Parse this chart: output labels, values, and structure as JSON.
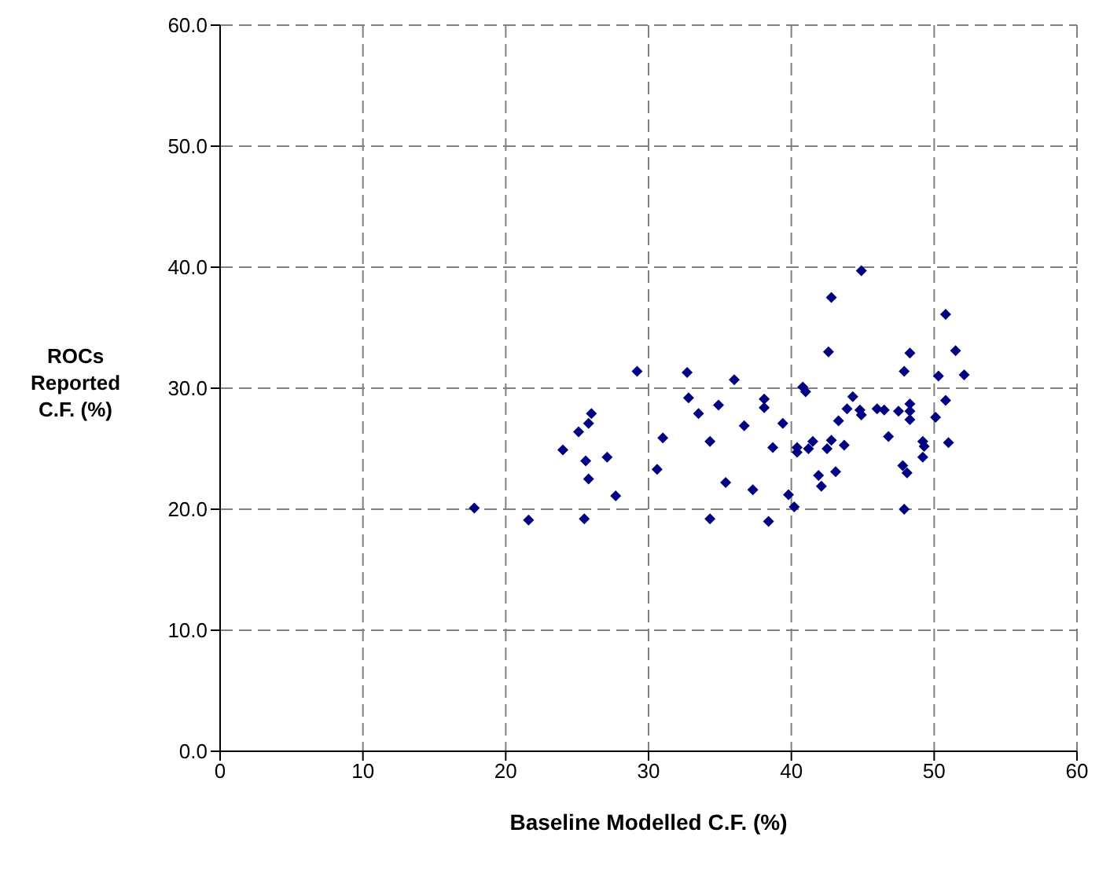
{
  "chart_data": {
    "type": "scatter",
    "xlabel": "Baseline Modelled C.F. (%)",
    "ylabel": "ROCs Reported C.F. (%)",
    "xlim": [
      0,
      60
    ],
    "ylim": [
      0,
      60
    ],
    "xticks": [
      0,
      10,
      20,
      30,
      40,
      50,
      60
    ],
    "yticks": [
      {
        "value": 0,
        "label": "0.0"
      },
      {
        "value": 10,
        "label": "10.0"
      },
      {
        "value": 20,
        "label": "20.0"
      },
      {
        "value": 30,
        "label": "30.0"
      },
      {
        "value": 40,
        "label": "40.0"
      },
      {
        "value": 50,
        "label": "50.0"
      },
      {
        "value": 60,
        "label": "60.0"
      }
    ],
    "grid": true,
    "marker": "diamond",
    "series": [
      {
        "color": "#000080",
        "x": [
          17.8,
          21.6,
          25.5,
          24.0,
          25.6,
          25.8,
          25.1,
          25.8,
          26.0,
          27.1,
          27.7,
          29.2,
          30.6,
          31.0,
          32.7,
          32.8,
          33.5,
          34.3,
          34.3,
          34.9,
          35.4,
          36.0,
          36.7,
          37.3,
          38.4,
          44.9,
          42.8,
          50.8,
          42.6,
          48.3,
          51.5,
          47.9,
          50.3,
          52.1,
          40.8,
          41.0,
          38.1,
          38.1,
          44.3,
          43.9,
          44.8,
          44.9,
          46.0,
          46.5,
          47.5,
          48.3,
          48.3,
          48.3,
          50.8,
          50.1,
          39.4,
          43.3,
          38.7,
          40.4,
          40.4,
          41.2,
          41.5,
          42.5,
          42.8,
          43.7,
          46.8,
          49.2,
          49.3,
          49.2,
          51.0,
          47.8,
          48.1,
          41.9,
          42.1,
          43.1,
          39.8,
          40.2,
          47.9
        ],
        "values": [
          20.1,
          19.1,
          19.2,
          24.9,
          24.0,
          22.5,
          26.4,
          27.1,
          27.9,
          24.3,
          21.1,
          31.4,
          23.3,
          25.9,
          31.3,
          29.2,
          27.9,
          25.6,
          19.2,
          28.6,
          22.2,
          30.7,
          26.9,
          21.6,
          19.0,
          39.7,
          37.5,
          36.1,
          33.0,
          32.9,
          33.1,
          31.4,
          31.0,
          31.1,
          30.1,
          29.7,
          29.1,
          28.4,
          29.3,
          28.3,
          28.2,
          27.8,
          28.3,
          28.2,
          28.1,
          28.7,
          28.1,
          27.4,
          29.0,
          27.6,
          27.1,
          27.3,
          25.1,
          25.1,
          24.7,
          25.0,
          25.6,
          25.0,
          25.7,
          25.3,
          26.0,
          25.6,
          25.2,
          24.3,
          25.5,
          23.6,
          23.0,
          22.8,
          21.9,
          23.1,
          21.2,
          20.2,
          20.0
        ]
      }
    ]
  }
}
